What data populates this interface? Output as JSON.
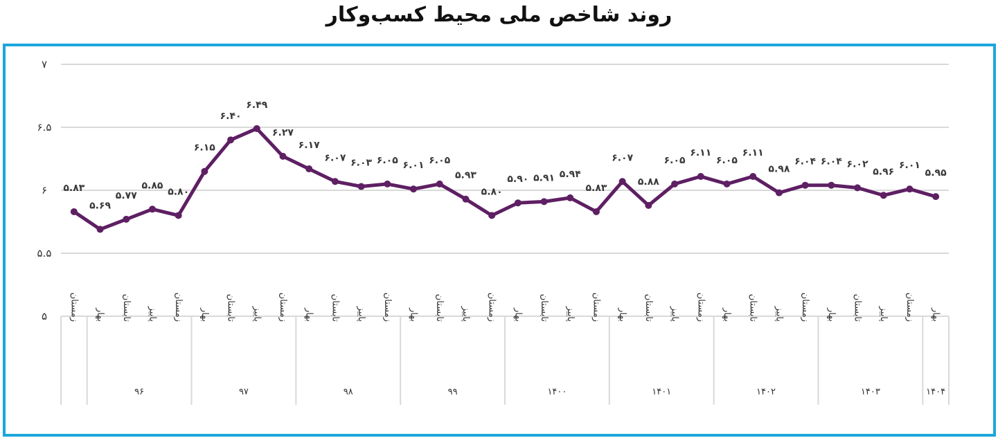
{
  "title": "روند شاخص ملی محیط کسب‌وکار",
  "colors": {
    "line": "#5e1f63",
    "frame": "#1ba6dc",
    "grid": "#d9d9d9",
    "text": "#333333"
  },
  "chart_data": {
    "type": "line",
    "title": "روند شاخص ملی محیط کسب‌وکار",
    "xlabel": "",
    "ylabel": "",
    "ylim": [
      5,
      7
    ],
    "yticks": [
      5,
      5.5,
      6,
      6.5,
      7
    ],
    "ytick_labels": [
      "۵",
      "۵.۵",
      "۶",
      "۶.۵",
      "۷"
    ],
    "grid": true,
    "legend": "none",
    "groups": [
      {
        "label": "",
        "count": 1
      },
      {
        "label": "۹۶",
        "count": 4
      },
      {
        "label": "۹۷",
        "count": 4
      },
      {
        "label": "۹۸",
        "count": 4
      },
      {
        "label": "۹۹",
        "count": 4
      },
      {
        "label": "۱۴۰۰",
        "count": 4
      },
      {
        "label": "۱۴۰۱",
        "count": 4
      },
      {
        "label": "۱۴۰۲",
        "count": 4
      },
      {
        "label": "۱۴۰۳",
        "count": 4
      },
      {
        "label": "۱۴۰۴",
        "count": 1
      }
    ],
    "categories": [
      "زمستان",
      "بهار",
      "تابستان",
      "پاییز",
      "زمستان",
      "بهار",
      "تابستان",
      "پاییز",
      "زمستان",
      "بهار",
      "تابستان",
      "پاییز",
      "زمستان",
      "بهار",
      "تابستان",
      "پاییز",
      "زمستان",
      "بهار",
      "تابستان",
      "پاییز",
      "زمستان",
      "بهار",
      "تابستان",
      "پاییز",
      "زمستان",
      "بهار",
      "تابستان",
      "پاییز",
      "زمستان",
      "بهار",
      "تابستان",
      "پاییز",
      "زمستان",
      "بهار"
    ],
    "values": [
      5.83,
      5.69,
      5.77,
      5.85,
      5.8,
      6.15,
      6.4,
      6.49,
      6.27,
      6.17,
      6.07,
      6.03,
      6.05,
      6.01,
      6.05,
      5.93,
      5.8,
      5.9,
      5.91,
      5.94,
      5.83,
      6.07,
      5.88,
      6.05,
      6.11,
      6.05,
      6.11,
      5.98,
      6.04,
      6.04,
      6.02,
      5.96,
      6.01,
      5.95
    ],
    "data_labels": [
      "۵.۸۳",
      "۵.۶۹",
      "۵.۷۷",
      "۵.۸۵",
      "۵.۸۰",
      "۶.۱۵",
      "۶.۴۰",
      "۶.۴۹",
      "۶.۲۷",
      "۶.۱۷",
      "۶.۰۷",
      "۶.۰۳",
      "۶.۰۵",
      "۶.۰۱",
      "۶.۰۵",
      "۵.۹۳",
      "۵.۸۰",
      "۵.۹۰",
      "۵.۹۱",
      "۵.۹۴",
      "۵.۸۳",
      "۶.۰۷",
      "۵.۸۸",
      "۶.۰۵",
      "۶.۱۱",
      "۶.۰۵",
      "۶.۱۱",
      "۵.۹۸",
      "۶.۰۴",
      "۶.۰۴",
      "۶.۰۲",
      "۵.۹۶",
      "۶.۰۱",
      "۵.۹۵"
    ]
  }
}
